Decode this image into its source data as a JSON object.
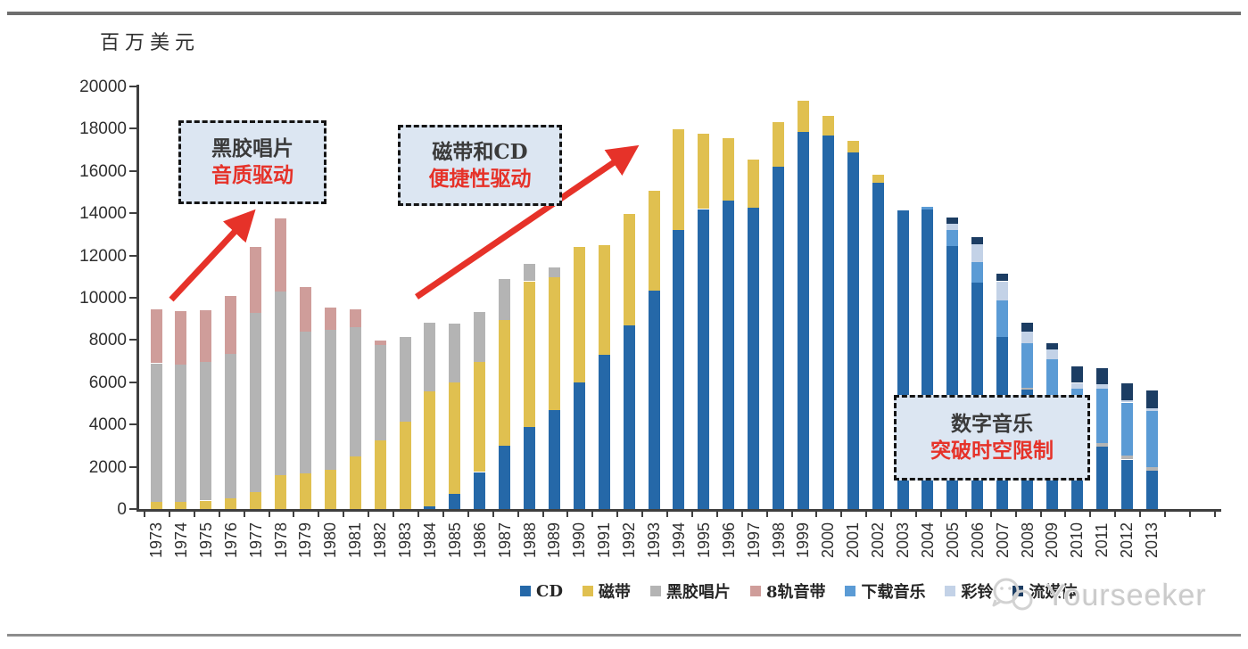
{
  "page": {
    "unit_label": "百万美元",
    "watermark": "Yourseeker"
  },
  "annotations": [
    {
      "line1": "黑胶唱片",
      "line2": "音质驱动"
    },
    {
      "line1": "磁带和CD",
      "line2": "便捷性驱动"
    },
    {
      "line1": "数字音乐",
      "line2": "突破时空限制"
    }
  ],
  "chart_data": {
    "type": "bar",
    "stacked": true,
    "title": "",
    "ylabel": "百万美元",
    "xlabel": "",
    "ylim": [
      0,
      20000
    ],
    "yticks": [
      0,
      2000,
      4000,
      6000,
      8000,
      10000,
      12000,
      14000,
      16000,
      18000,
      20000
    ],
    "grid": false,
    "legend_position": "bottom",
    "annotation_red_color": "#e63229",
    "callout_bg_color": "#dce6f2",
    "categories": [
      "1973",
      "1974",
      "1975",
      "1976",
      "1977",
      "1978",
      "1979",
      "1980",
      "1981",
      "1982",
      "1983",
      "1984",
      "1985",
      "1986",
      "1987",
      "1988",
      "1989",
      "1990",
      "1991",
      "1992",
      "1993",
      "1994",
      "1995",
      "1996",
      "1997",
      "1998",
      "1999",
      "2000",
      "2001",
      "2002",
      "2003",
      "2004",
      "2005",
      "2006",
      "2007",
      "2008",
      "2009",
      "2010",
      "2011",
      "2012",
      "2013"
    ],
    "series": [
      {
        "name": "CD",
        "key": "cd",
        "color": "#2568a8",
        "values": [
          0,
          0,
          0,
          0,
          0,
          0,
          0,
          0,
          0,
          0,
          0,
          110,
          710,
          1750,
          3000,
          3900,
          4700,
          6000,
          7300,
          8700,
          10350,
          13200,
          14200,
          14600,
          14250,
          16200,
          17830,
          17690,
          16890,
          15430,
          14130,
          14170,
          12450,
          10700,
          8130,
          5650,
          4300,
          3400,
          2970,
          2340,
          1800
        ]
      },
      {
        "name": "磁带",
        "key": "cassette",
        "color": "#e0c050",
        "values": [
          350,
          350,
          400,
          500,
          800,
          1600,
          1700,
          1850,
          2500,
          3250,
          4150,
          5470,
          5300,
          5220,
          5950,
          6880,
          6290,
          6420,
          5180,
          5250,
          4710,
          4760,
          3560,
          2950,
          2290,
          2110,
          1500,
          900,
          520,
          410,
          0,
          0,
          0,
          0,
          0,
          0,
          0,
          0,
          0,
          0,
          0
        ]
      },
      {
        "name": "黑胶唱片",
        "key": "vinyl",
        "color": "#b4b4b4",
        "values": [
          6550,
          6500,
          6550,
          6850,
          8500,
          8700,
          6700,
          6650,
          6100,
          4530,
          3980,
          3250,
          2750,
          2350,
          1950,
          840,
          450,
          0,
          0,
          0,
          0,
          0,
          0,
          0,
          0,
          0,
          0,
          0,
          0,
          0,
          0,
          0,
          0,
          0,
          0,
          100,
          100,
          100,
          140,
          200,
          195
        ]
      },
      {
        "name": "8轨音带",
        "key": "eight-track",
        "color": "#cf9d9a",
        "values": [
          2550,
          2500,
          2450,
          2750,
          3100,
          3450,
          2100,
          1050,
          850,
          180,
          0,
          0,
          0,
          0,
          0,
          0,
          0,
          0,
          0,
          0,
          0,
          0,
          0,
          0,
          0,
          0,
          0,
          0,
          0,
          0,
          0,
          0,
          0,
          0,
          0,
          0,
          0,
          0,
          0,
          0,
          0
        ]
      },
      {
        "name": "下载音乐",
        "key": "download",
        "color": "#5b9bd5",
        "values": [
          0,
          0,
          0,
          0,
          0,
          0,
          0,
          0,
          0,
          0,
          0,
          0,
          0,
          0,
          0,
          0,
          0,
          0,
          0,
          0,
          0,
          0,
          0,
          0,
          0,
          0,
          0,
          0,
          0,
          0,
          0,
          140,
          770,
          990,
          1750,
          2100,
          2680,
          2190,
          2580,
          2500,
          2650
        ]
      },
      {
        "name": "彩铃",
        "key": "ringtone",
        "color": "#c3d2e7",
        "values": [
          0,
          0,
          0,
          0,
          0,
          0,
          0,
          0,
          0,
          0,
          0,
          0,
          0,
          0,
          0,
          0,
          0,
          0,
          0,
          0,
          0,
          0,
          0,
          0,
          0,
          0,
          0,
          0,
          0,
          0,
          0,
          0,
          280,
          830,
          900,
          560,
          480,
          280,
          220,
          120,
          140
        ]
      },
      {
        "name": "流媒体",
        "key": "streaming",
        "color": "#1c3d63",
        "values": [
          0,
          0,
          0,
          0,
          0,
          0,
          0,
          0,
          0,
          0,
          0,
          0,
          0,
          0,
          0,
          0,
          0,
          0,
          0,
          0,
          0,
          0,
          0,
          0,
          0,
          0,
          0,
          0,
          0,
          0,
          0,
          0,
          280,
          350,
          350,
          420,
          290,
          770,
          760,
          800,
          840
        ]
      }
    ]
  }
}
